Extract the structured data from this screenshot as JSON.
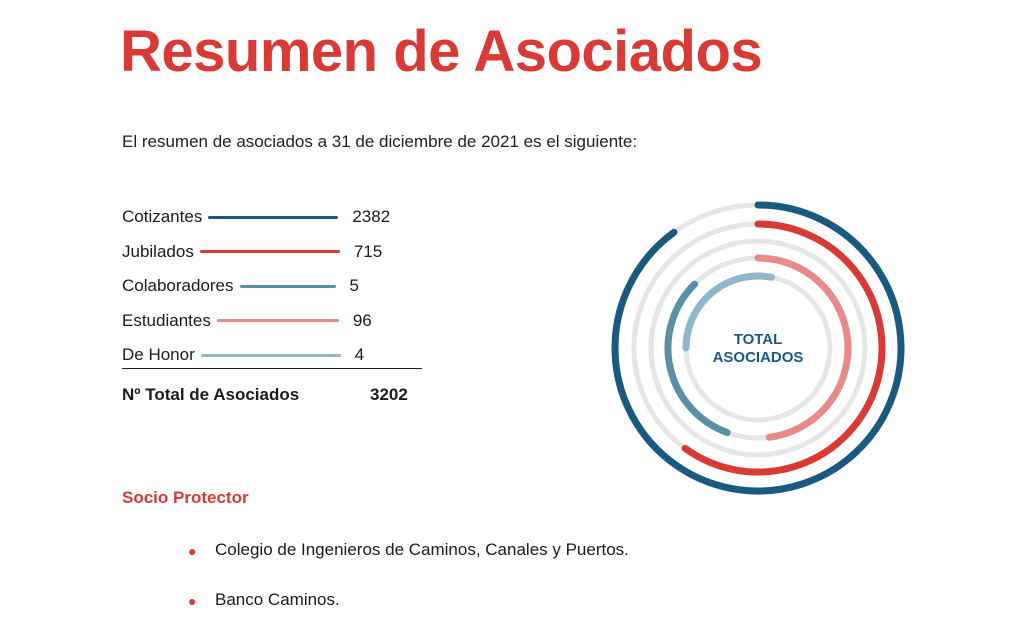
{
  "page": {
    "title": "Resumen de Asociados",
    "intro": "El resumen de asociados a 31 de diciembre de 2021 es el siguiente:",
    "total_label": "Nº Total de Asociados",
    "total_value": "3202",
    "section_title": "Socio Protector",
    "bullets": [
      "Colegio de Ingenieros de Caminos, Canales y Puertos.",
      "Banco Caminos."
    ]
  },
  "colors": {
    "accent": "#d93a36",
    "cotizantes": "#1b5a80",
    "jubilados": "#d93a36",
    "colaboradores": "#5a8fa8",
    "estudiantes": "#e88a87",
    "de_honor": "#8fb6c9",
    "track": "#e6e6e6"
  },
  "chart_data": {
    "type": "radial-bar",
    "center_label_line1": "TOTAL",
    "center_label_line2": "ASOCIADOS",
    "series": [
      {
        "name": "Cotizantes",
        "value": 2382,
        "display": "2382",
        "color": "#1b5a80",
        "ring_fraction": 0.9
      },
      {
        "name": "Jubilados",
        "value": 715,
        "display": "715",
        "color": "#d93a36",
        "ring_fraction": 0.6
      },
      {
        "name": "Colaboradores",
        "value": 5,
        "display": "5",
        "color": "#5a8fa8",
        "ring_fraction": 0.32
      },
      {
        "name": "Estudiantes",
        "value": 96,
        "display": "96",
        "color": "#e88a87",
        "ring_fraction": 0.48
      },
      {
        "name": "De Honor",
        "value": 4,
        "display": "4",
        "color": "#8fb6c9",
        "ring_fraction": 0.28
      }
    ]
  }
}
